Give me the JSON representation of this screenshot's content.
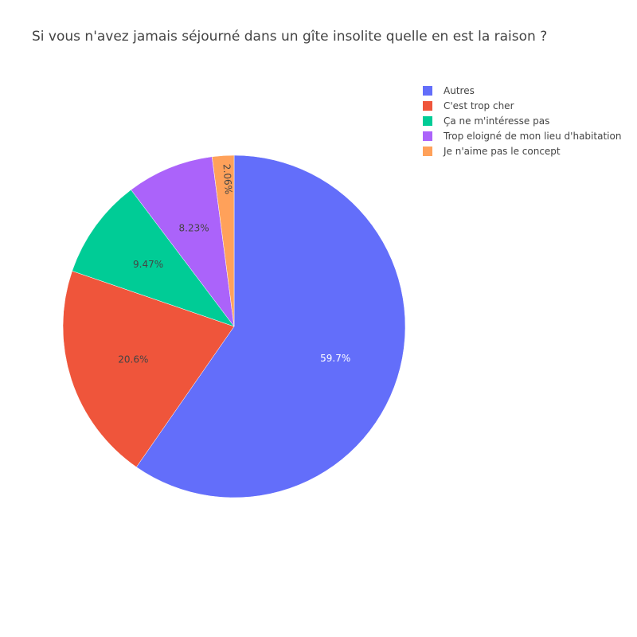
{
  "chart_data": {
    "type": "pie",
    "title": "Si vous n'avez jamais séjourné dans un gîte insolite quelle en est la raison ?",
    "slices": [
      {
        "label": "Autres",
        "value": 59.7,
        "display": "59.7%",
        "color": "#636efa",
        "text_color": "#ffffff"
      },
      {
        "label": "C'est trop cher",
        "value": 20.6,
        "display": "20.6%",
        "color": "#ef553b",
        "text_color": "#444444"
      },
      {
        "label": "Ça ne m'intéresse pas",
        "value": 9.47,
        "display": "9.47%",
        "color": "#00cc96",
        "text_color": "#444444"
      },
      {
        "label": "Trop eloigné de mon lieu d'habitation",
        "value": 8.23,
        "display": "8.23%",
        "color": "#ab63fa",
        "text_color": "#444444"
      },
      {
        "label": "Je n'aime pas le concept",
        "value": 2.06,
        "display": "2.06%",
        "color": "#ffa15a",
        "text_color": "#444444"
      }
    ],
    "direction": "clockwise",
    "start": "top",
    "legend_position": "top-right"
  }
}
